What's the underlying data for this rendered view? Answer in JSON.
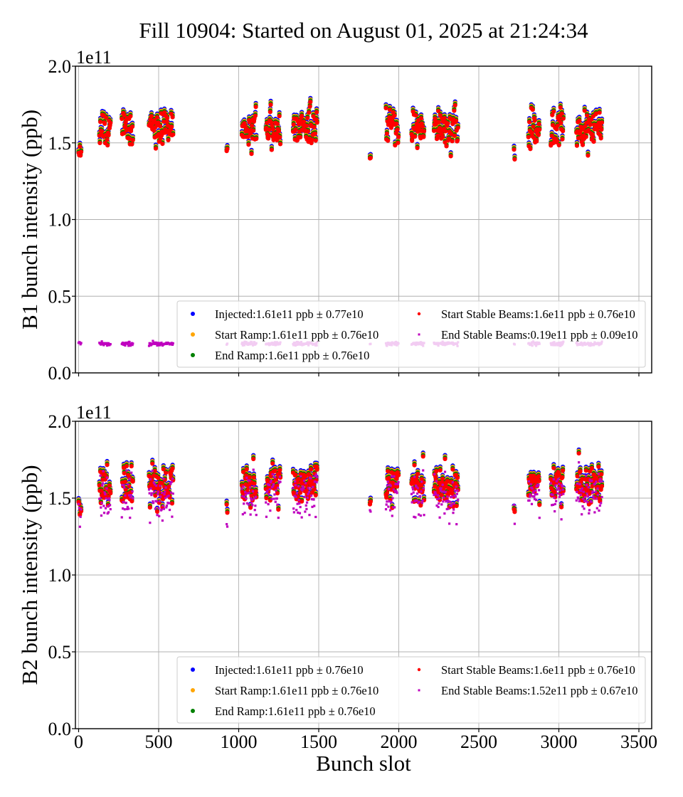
{
  "chart_data": {
    "type": "scatter",
    "title": "Fill 10904: Started on August 01, 2025 at 21:24:34",
    "xlabel": "Bunch slot",
    "xlim": [
      -20,
      3580
    ],
    "xticks": [
      0,
      500,
      1000,
      1500,
      2000,
      2500,
      3000,
      3500
    ],
    "xtick_labels": [
      "0",
      "500",
      "1000",
      "1500",
      "2000",
      "2500",
      "3000",
      "3500"
    ],
    "grid": true,
    "legend_placement": "lower-right",
    "legend_columns": 2,
    "series_styles": [
      {
        "name": "Injected",
        "color": "#0000ff",
        "marker": "circle",
        "size": "large"
      },
      {
        "name": "Start Ramp",
        "color": "#ffa500",
        "marker": "circle",
        "size": "large"
      },
      {
        "name": "End Ramp",
        "color": "#008000",
        "marker": "circle",
        "size": "large"
      },
      {
        "name": "Start Stable Beams",
        "color": "#ff0000",
        "marker": "circle",
        "size": "large"
      },
      {
        "name": "End Stable Beams",
        "color": "#bf00bf",
        "marker": "square",
        "size": "small"
      }
    ],
    "bunch_trains": [
      {
        "start": 0,
        "end": 18
      },
      {
        "start": 130,
        "end": 200
      },
      {
        "start": 270,
        "end": 340
      },
      {
        "start": 440,
        "end": 590
      },
      {
        "start": 925,
        "end": 930
      },
      {
        "start": 1020,
        "end": 1110
      },
      {
        "start": 1170,
        "end": 1260
      },
      {
        "start": 1340,
        "end": 1490
      },
      {
        "start": 1820,
        "end": 1825
      },
      {
        "start": 1920,
        "end": 2000
      },
      {
        "start": 2080,
        "end": 2160
      },
      {
        "start": 2220,
        "end": 2370
      },
      {
        "start": 2720,
        "end": 2725
      },
      {
        "start": 2810,
        "end": 2880
      },
      {
        "start": 2950,
        "end": 3030
      },
      {
        "start": 3110,
        "end": 3270
      }
    ],
    "panels": [
      {
        "id": "b1",
        "ylabel": "B1 bunch intensity (ppb)",
        "ylim": [
          0.0,
          2.0
        ],
        "yscale_offset": "1e11",
        "yticks": [
          0.0,
          0.5,
          1.0,
          1.5,
          2.0
        ],
        "ytick_labels": [
          "0.0",
          "0.5",
          "1.0",
          "1.5",
          "2.0"
        ],
        "series": [
          {
            "name": "Injected",
            "label": "Injected:1.61e11 ppb ± 0.77e10",
            "mean": 1.61,
            "std": 0.077
          },
          {
            "name": "Start Ramp",
            "label": "Start Ramp:1.61e11 ppb ± 0.76e10",
            "mean": 1.61,
            "std": 0.076
          },
          {
            "name": "End Ramp",
            "label": "End Ramp:1.6e11 ppb ± 0.76e10",
            "mean": 1.6,
            "std": 0.076
          },
          {
            "name": "Start Stable Beams",
            "label": "Start Stable Beams:1.6e11 ppb ± 0.76e10",
            "mean": 1.6,
            "std": 0.076
          },
          {
            "name": "End Stable Beams",
            "label": "End Stable Beams:0.19e11 ppb ± 0.09e10",
            "mean": 0.19,
            "std": 0.009
          }
        ]
      },
      {
        "id": "b2",
        "ylabel": "B2 bunch intensity (ppb)",
        "ylim": [
          0.0,
          2.0
        ],
        "yscale_offset": "1e11",
        "yticks": [
          0.0,
          0.5,
          1.0,
          1.5,
          2.0
        ],
        "ytick_labels": [
          "0.0",
          "0.5",
          "1.0",
          "1.5",
          "2.0"
        ],
        "series": [
          {
            "name": "Injected",
            "label": "Injected:1.61e11 ppb ± 0.76e10",
            "mean": 1.61,
            "std": 0.076
          },
          {
            "name": "Start Ramp",
            "label": "Start Ramp:1.61e11 ppb ± 0.76e10",
            "mean": 1.61,
            "std": 0.076
          },
          {
            "name": "End Ramp",
            "label": "End Ramp:1.61e11 ppb ± 0.76e10",
            "mean": 1.61,
            "std": 0.076
          },
          {
            "name": "Start Stable Beams",
            "label": "Start Stable Beams:1.6e11 ppb ± 0.76e10",
            "mean": 1.6,
            "std": 0.076
          },
          {
            "name": "End Stable Beams",
            "label": "End Stable Beams:1.52e11 ppb ± 0.67e10",
            "mean": 1.52,
            "std": 0.067
          }
        ]
      }
    ]
  }
}
